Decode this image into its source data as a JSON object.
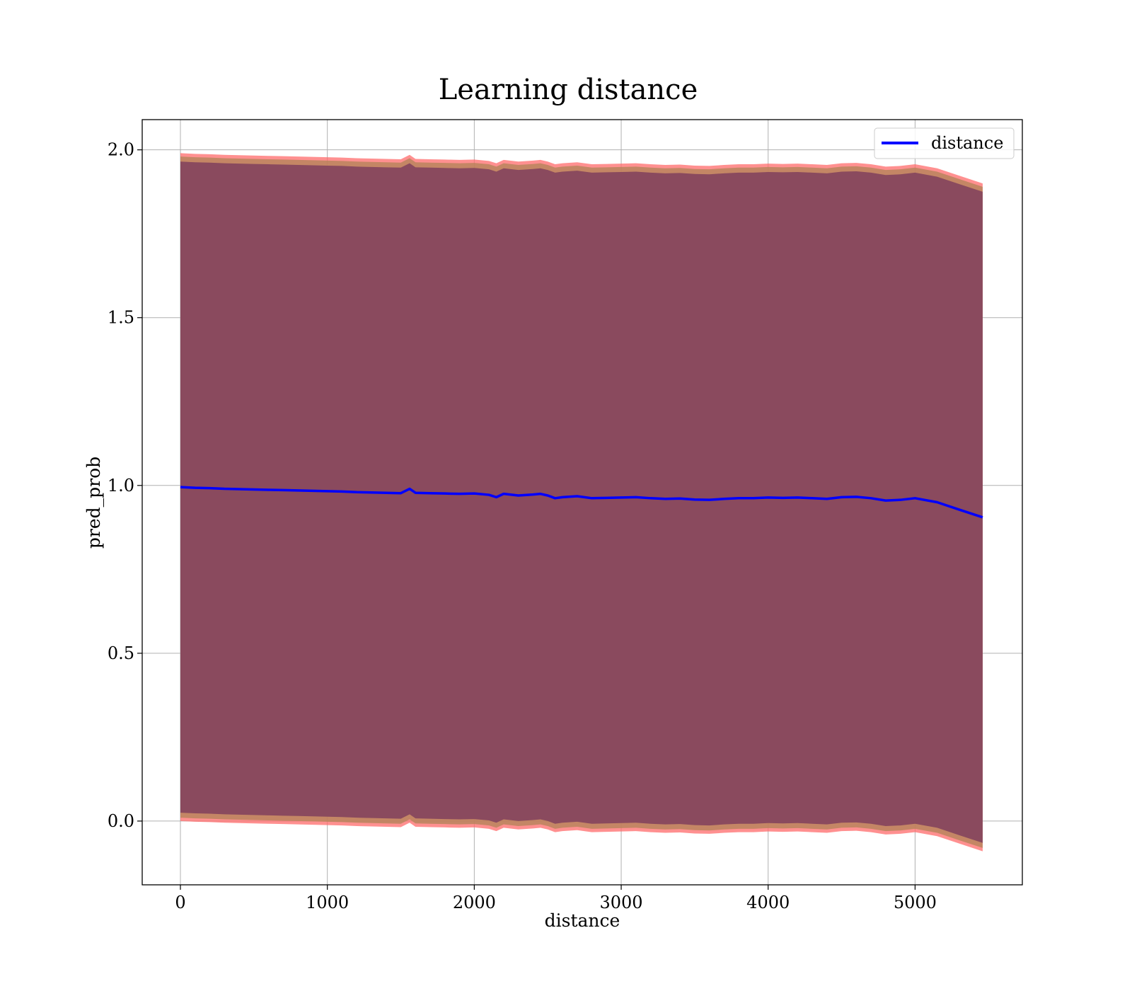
{
  "colors": {
    "line": "#0000ff",
    "band_outer": "#ff6b6b",
    "band_middle": "#b5835a",
    "band_inner": "#8a4a5e",
    "grid": "#b0b0b0",
    "axis": "#000000"
  },
  "chart_data": {
    "type": "line",
    "title": "Learning distance",
    "xlabel": "distance",
    "ylabel": "pred_prob",
    "xlim": [
      -260,
      5730
    ],
    "ylim": [
      -0.19,
      2.09
    ],
    "xticks": [
      0,
      1000,
      2000,
      3000,
      4000,
      5000
    ],
    "yticks": [
      0.0,
      0.5,
      1.0,
      1.5,
      2.0
    ],
    "xtick_labels": [
      "0",
      "1000",
      "2000",
      "3000",
      "4000",
      "5000"
    ],
    "ytick_labels": [
      "0.0",
      "0.5",
      "1.0",
      "1.5",
      "2.0"
    ],
    "grid": true,
    "legend": {
      "position": "top-right",
      "entries": [
        "distance"
      ]
    },
    "series": [
      {
        "name": "distance",
        "x": [
          0,
          100,
          200,
          300,
          400,
          500,
          600,
          700,
          800,
          900,
          1000,
          1100,
          1200,
          1300,
          1400,
          1500,
          1560,
          1600,
          1700,
          1800,
          1900,
          2000,
          2100,
          2150,
          2200,
          2300,
          2400,
          2450,
          2500,
          2550,
          2600,
          2700,
          2800,
          2900,
          3000,
          3100,
          3200,
          3300,
          3400,
          3500,
          3600,
          3700,
          3800,
          3900,
          4000,
          4100,
          4200,
          4300,
          4400,
          4500,
          4600,
          4700,
          4800,
          4900,
          5000,
          5150,
          5300,
          5460
        ],
        "values": [
          0.995,
          0.993,
          0.992,
          0.99,
          0.989,
          0.988,
          0.987,
          0.986,
          0.985,
          0.984,
          0.983,
          0.982,
          0.98,
          0.979,
          0.978,
          0.977,
          0.99,
          0.978,
          0.977,
          0.976,
          0.975,
          0.976,
          0.972,
          0.965,
          0.975,
          0.97,
          0.973,
          0.975,
          0.97,
          0.962,
          0.965,
          0.968,
          0.962,
          0.963,
          0.964,
          0.965,
          0.962,
          0.96,
          0.961,
          0.958,
          0.957,
          0.96,
          0.962,
          0.962,
          0.964,
          0.963,
          0.964,
          0.962,
          0.96,
          0.965,
          0.966,
          0.962,
          0.955,
          0.957,
          0.962,
          0.95,
          0.928,
          0.905
        ]
      }
    ],
    "bands": [
      {
        "label": "outer",
        "half_width": 0.995
      },
      {
        "label": "middle",
        "half_width": 0.985
      },
      {
        "label": "inner",
        "half_width": 0.97
      }
    ]
  }
}
